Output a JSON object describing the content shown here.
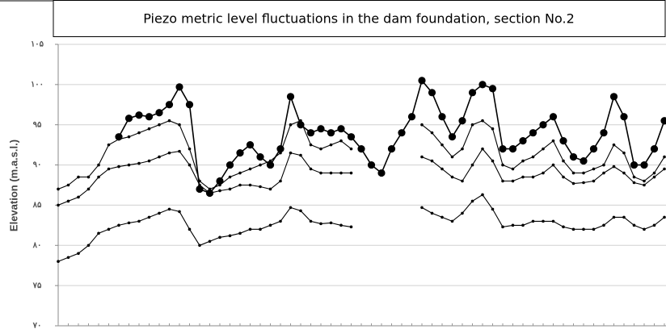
{
  "chart_data": {
    "type": "line",
    "title": "Piezo metric level fluctuations in the dam foundation, section No.2",
    "y_label": "Elevation (m.a.s.l.)",
    "categories": [
      null,
      null,
      null,
      null,
      null,
      null,
      null,
      null,
      null,
      null,
      null,
      null,
      null,
      null,
      null,
      null,
      null,
      null,
      null,
      null,
      null,
      null,
      null,
      null,
      null,
      null,
      null,
      null,
      null,
      null,
      null,
      null,
      null,
      null,
      null,
      null,
      null,
      null,
      null,
      null,
      null,
      null,
      null,
      null,
      null,
      null,
      null,
      null,
      null,
      null,
      null,
      null,
      null,
      null,
      null,
      null,
      null,
      null,
      null,
      null,
      null
    ],
    "ylim": [
      70,
      105
    ],
    "yticks": [
      {
        "value": 70,
        "label": "۷۰"
      },
      {
        "value": 75,
        "label": "۷۵"
      },
      {
        "value": 80,
        "label": "۸۰"
      },
      {
        "value": 85,
        "label": "۸۵"
      },
      {
        "value": 90,
        "label": "۹۰"
      },
      {
        "value": 95,
        "label": "۹۵"
      },
      {
        "value": 100,
        "label": "۱۰۰"
      },
      {
        "value": 105,
        "label": "۱۰۵"
      }
    ],
    "grid": true,
    "series": [
      {
        "color": "#000000",
        "marker": "large",
        "values": [
          null,
          null,
          null,
          null,
          null,
          null,
          93.5,
          95.8,
          96.2,
          96,
          96.5,
          97.5,
          99.7,
          97.5,
          87,
          86.5,
          88,
          90,
          91.5,
          92.5,
          91,
          90,
          92,
          98.5,
          95,
          94,
          94.5,
          94,
          94.5,
          93.5,
          92,
          90,
          89,
          92,
          94,
          96,
          100.5,
          99,
          96,
          93.5,
          95.5,
          99,
          100,
          99.5,
          92,
          92,
          93,
          94,
          95,
          96,
          93,
          91,
          90.5,
          92,
          94,
          98.5,
          96,
          90,
          90,
          92,
          95.5
        ]
      },
      {
        "color": "#000000",
        "marker": "small",
        "values": [
          87,
          87.5,
          88.5,
          88.5,
          90,
          92.5,
          93.2,
          93.5,
          94,
          94.5,
          95,
          95.5,
          95,
          92,
          88,
          87,
          87.5,
          88.5,
          89,
          89.5,
          90,
          90.5,
          91.5,
          95,
          95.5,
          92.5,
          92,
          92.5,
          93,
          92,
          null,
          null,
          null,
          null,
          null,
          null,
          95,
          94,
          92.5,
          91,
          92,
          95,
          95.5,
          94.5,
          90,
          89.5,
          90.5,
          91,
          92,
          93,
          90.5,
          89,
          89,
          89.5,
          90,
          92.5,
          91.5,
          88.5,
          88,
          89,
          91
        ]
      },
      {
        "color": "#000000",
        "marker": "small",
        "values": [
          85,
          85.5,
          86,
          87,
          88.5,
          89.5,
          89.8,
          90,
          90.2,
          90.5,
          91,
          91.5,
          91.7,
          90,
          87.5,
          86.5,
          86.8,
          87,
          87.5,
          87.5,
          87.3,
          87,
          88,
          91.5,
          91.2,
          89.5,
          89,
          89,
          89,
          89,
          null,
          null,
          null,
          null,
          null,
          null,
          91,
          90.5,
          89.5,
          88.5,
          88,
          90,
          92,
          90.5,
          88,
          88,
          88.5,
          88.5,
          89,
          90,
          88.5,
          87.7,
          87.8,
          88,
          89,
          89.8,
          89,
          87.8,
          87.5,
          88.5,
          89.5
        ]
      },
      {
        "color": "#000000",
        "marker": "small",
        "values": [
          78,
          78.5,
          79,
          80,
          81.5,
          82,
          82.5,
          82.8,
          83,
          83.5,
          84,
          84.5,
          84.2,
          82,
          80,
          80.5,
          81,
          81.2,
          81.5,
          82,
          82,
          82.5,
          83,
          84.7,
          84.3,
          83,
          82.7,
          82.8,
          82.5,
          82.3,
          null,
          null,
          null,
          null,
          null,
          null,
          84.7,
          84,
          83.5,
          83,
          84,
          85.5,
          86.3,
          84.5,
          82.3,
          82.5,
          82.5,
          83,
          83,
          83,
          82.3,
          82,
          82,
          82,
          82.5,
          83.5,
          83.5,
          82.5,
          82,
          82.5,
          83.5
        ]
      }
    ]
  }
}
